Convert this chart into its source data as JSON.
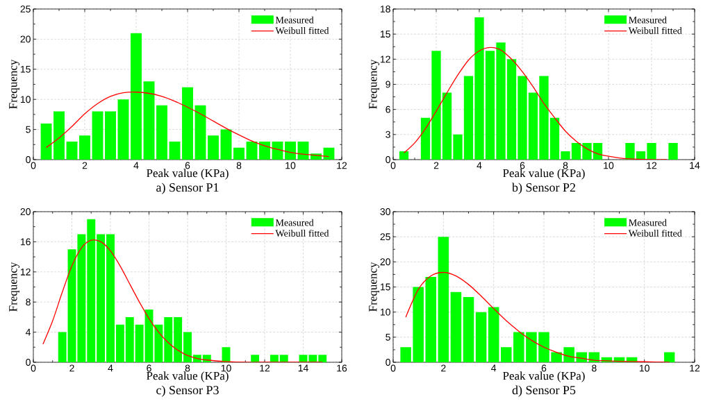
{
  "chart_data": [
    {
      "type": "histogram",
      "title": "a) Sensor P1",
      "xlabel": "Peak value (KPa)",
      "ylabel": "Frequency",
      "xlim": [
        0,
        12
      ],
      "ylim": [
        0,
        25
      ],
      "xticks": [
        0,
        2,
        4,
        6,
        8,
        10,
        12
      ],
      "yticks": [
        0,
        5,
        10,
        15,
        20,
        25
      ],
      "grid": true,
      "legend": "top right",
      "series": [
        {
          "name": "Measured",
          "color": "#00ff00",
          "bins": [
            0.25,
            0.75,
            1.25,
            1.75,
            2.25,
            2.75,
            3.25,
            3.75,
            4.25,
            4.75,
            5.25,
            5.75,
            6.25,
            6.75,
            7.25,
            7.75,
            8.25,
            8.75,
            9.25,
            9.75,
            10.25,
            10.75,
            11.25,
            11.75
          ],
          "values": [
            6,
            8,
            3,
            4,
            8,
            8,
            10,
            21,
            13,
            9,
            3,
            12,
            9,
            4,
            5,
            2,
            3,
            3,
            3,
            3,
            3,
            1,
            2
          ]
        },
        {
          "name": "Weibull fitted",
          "type": "line",
          "color": "#ff0000",
          "x": [
            0.5,
            1,
            1.5,
            2,
            2.5,
            3,
            3.5,
            4,
            4.5,
            5,
            5.5,
            6,
            6.5,
            7,
            7.5,
            8,
            8.5,
            9,
            9.5,
            10,
            10.5,
            11,
            11.5
          ],
          "values": [
            2,
            3.6,
            5.5,
            7.6,
            9.3,
            10.5,
            11.1,
            11.2,
            11.0,
            10.5,
            9.7,
            8.7,
            7.6,
            6.4,
            5.2,
            4.1,
            3.1,
            2.3,
            1.7,
            1.2,
            0.9,
            0.7,
            0.5
          ]
        }
      ]
    },
    {
      "type": "histogram",
      "title": "b) Sensor P2",
      "xlabel": "Peak value (KPa)",
      "ylabel": "Frequency",
      "xlim": [
        0,
        14
      ],
      "ylim": [
        0,
        18
      ],
      "xticks": [
        0,
        2,
        4,
        6,
        8,
        10,
        12,
        14
      ],
      "yticks": [
        0,
        3,
        6,
        9,
        12,
        15,
        18
      ],
      "grid": true,
      "legend": "top right",
      "series": [
        {
          "name": "Measured",
          "color": "#00ff00",
          "bins": [
            0.25,
            0.75,
            1.25,
            1.75,
            2.25,
            2.75,
            3.25,
            3.75,
            4.25,
            4.75,
            5.25,
            5.75,
            6.25,
            6.75,
            7.25,
            7.75,
            8.25,
            8.75,
            9.25,
            9.75,
            10.25,
            10.75,
            11.25,
            11.75,
            12.25,
            12.75,
            13.25
          ],
          "values": [
            1,
            0,
            5,
            13,
            8,
            3,
            10,
            17,
            13,
            14,
            12,
            10,
            8,
            10,
            5,
            1,
            2,
            2,
            2,
            0,
            0,
            2,
            1,
            2,
            0,
            2
          ]
        },
        {
          "name": "Weibull fitted",
          "type": "line",
          "color": "#ff0000",
          "x": [
            0.5,
            1,
            1.5,
            2,
            2.5,
            3,
            3.5,
            4,
            4.5,
            5,
            5.5,
            6,
            6.5,
            7,
            7.5,
            8,
            8.5,
            9,
            9.5,
            10,
            10.5,
            11,
            12,
            12.7
          ],
          "values": [
            0.8,
            2.0,
            3.7,
            5.8,
            8.0,
            10.1,
            11.9,
            13.0,
            13.4,
            13.1,
            12.0,
            10.5,
            8.7,
            6.7,
            5.0,
            3.4,
            2.2,
            1.3,
            0.7,
            0.4,
            0.2,
            0.1,
            0,
            0
          ]
        }
      ]
    },
    {
      "type": "histogram",
      "title": "c) Sensor P3",
      "xlabel": "Peak value (KPa)",
      "ylabel": "Frequency",
      "xlim": [
        0,
        16
      ],
      "ylim": [
        0,
        20
      ],
      "xticks": [
        0,
        2,
        4,
        6,
        8,
        10,
        12,
        14,
        16
      ],
      "yticks": [
        0,
        4,
        8,
        12,
        16,
        20
      ],
      "grid": true,
      "legend": "top right",
      "series": [
        {
          "name": "Measured",
          "color": "#00ff00",
          "bins": [
            1.25,
            1.75,
            2.25,
            2.75,
            3.25,
            3.75,
            4.25,
            4.75,
            5.25,
            5.75,
            6.25,
            6.75,
            7.25,
            7.75,
            8.25,
            8.75,
            9.25,
            9.75,
            10.25,
            10.75,
            11.25,
            11.75,
            12.25,
            12.75,
            13.25,
            13.75,
            14.25,
            14.75,
            15.25
          ],
          "values": [
            4,
            15,
            17,
            19,
            17,
            17,
            5,
            6,
            5,
            7,
            5,
            6,
            6,
            4,
            1,
            1,
            0,
            2,
            0,
            0,
            1,
            0,
            1,
            1,
            0,
            1,
            1,
            1
          ]
        },
        {
          "name": "Weibull fitted",
          "type": "line",
          "color": "#ff0000",
          "x": [
            0.5,
            1,
            1.5,
            2,
            2.5,
            3,
            3.5,
            4,
            4.5,
            5,
            5.5,
            6,
            6.5,
            7,
            7.5,
            8,
            8.5,
            9,
            10,
            11,
            12,
            13,
            14,
            15
          ],
          "values": [
            2.4,
            5.5,
            9.3,
            12.8,
            15.2,
            16.2,
            16.0,
            14.8,
            12.8,
            10.4,
            8.0,
            5.8,
            4.0,
            2.6,
            1.6,
            0.9,
            0.5,
            0.3,
            0.1,
            0,
            0,
            0,
            0,
            0
          ]
        }
      ]
    },
    {
      "type": "histogram",
      "title": "d) Sensor P5",
      "xlabel": "Peak value (KPa)",
      "ylabel": "Frequency",
      "xlim": [
        0,
        12
      ],
      "ylim": [
        0,
        30
      ],
      "xticks": [
        0,
        2,
        4,
        6,
        8,
        10,
        12
      ],
      "yticks": [
        0,
        5,
        10,
        15,
        20,
        25,
        30
      ],
      "grid": true,
      "legend": "top right",
      "series": [
        {
          "name": "Measured",
          "color": "#00ff00",
          "bins": [
            0.25,
            0.75,
            1.25,
            1.75,
            2.25,
            2.75,
            3.25,
            3.75,
            4.25,
            4.75,
            5.25,
            5.75,
            6.25,
            6.75,
            7.25,
            7.75,
            8.25,
            8.75,
            9.25,
            9.75,
            10.25,
            10.75,
            11.25
          ],
          "values": [
            3,
            15,
            17,
            25,
            14,
            13,
            10,
            11,
            3,
            6,
            6,
            6,
            2,
            3,
            2,
            2,
            1,
            1,
            1,
            0,
            0,
            2
          ]
        },
        {
          "name": "Weibull fitted",
          "type": "line",
          "color": "#ff0000",
          "x": [
            0.5,
            1,
            1.5,
            2,
            2.5,
            3,
            3.5,
            4,
            4.5,
            5,
            5.5,
            6,
            6.5,
            7,
            7.5,
            8,
            8.5,
            9,
            10,
            11
          ],
          "values": [
            9,
            14.5,
            17.2,
            17.9,
            17.2,
            15.5,
            13.2,
            10.7,
            8.3,
            6.2,
            4.4,
            3.0,
            2.0,
            1.2,
            0.8,
            0.4,
            0.3,
            0.2,
            0.1,
            0
          ]
        }
      ]
    }
  ]
}
